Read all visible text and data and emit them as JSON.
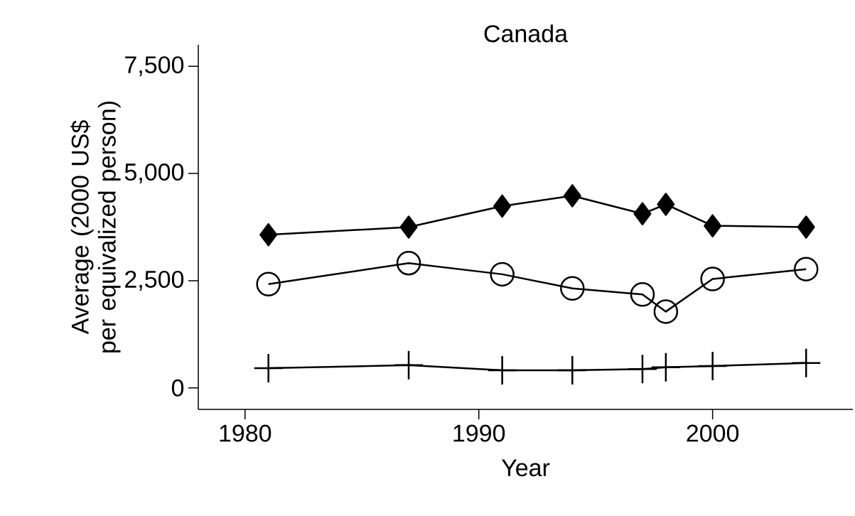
{
  "chart_data": {
    "type": "line",
    "title": "Canada",
    "xlabel": "Year",
    "ylabel": "Average (2000 US$ per equivalized person)",
    "x": [
      1981,
      1987,
      1991,
      1994,
      1997,
      1998,
      2000,
      2004
    ],
    "series": [
      {
        "color": "#000000",
        "marker": "diamond",
        "values": [
          3570,
          3750,
          4240,
          4480,
          4060,
          4280,
          3780,
          3750
        ]
      },
      {
        "color": "#000000",
        "marker": "circle",
        "values": [
          2420,
          2910,
          2650,
          2320,
          2180,
          1780,
          2540,
          2770
        ]
      },
      {
        "color": "#000000",
        "marker": "cross",
        "values": [
          460,
          530,
          410,
          410,
          440,
          480,
          510,
          580
        ]
      }
    ],
    "xlim": [
      1978,
      2006
    ],
    "ylim": [
      -500,
      8000
    ],
    "xticks": [
      1980,
      1990,
      2000
    ],
    "yticks": [
      {
        "value": 0,
        "label": "0"
      },
      {
        "value": 2500,
        "label": "2,500"
      },
      {
        "value": 5000,
        "label": "5,000"
      },
      {
        "value": 7500,
        "label": "7,500"
      }
    ],
    "grid": false,
    "line_style": "solid"
  }
}
